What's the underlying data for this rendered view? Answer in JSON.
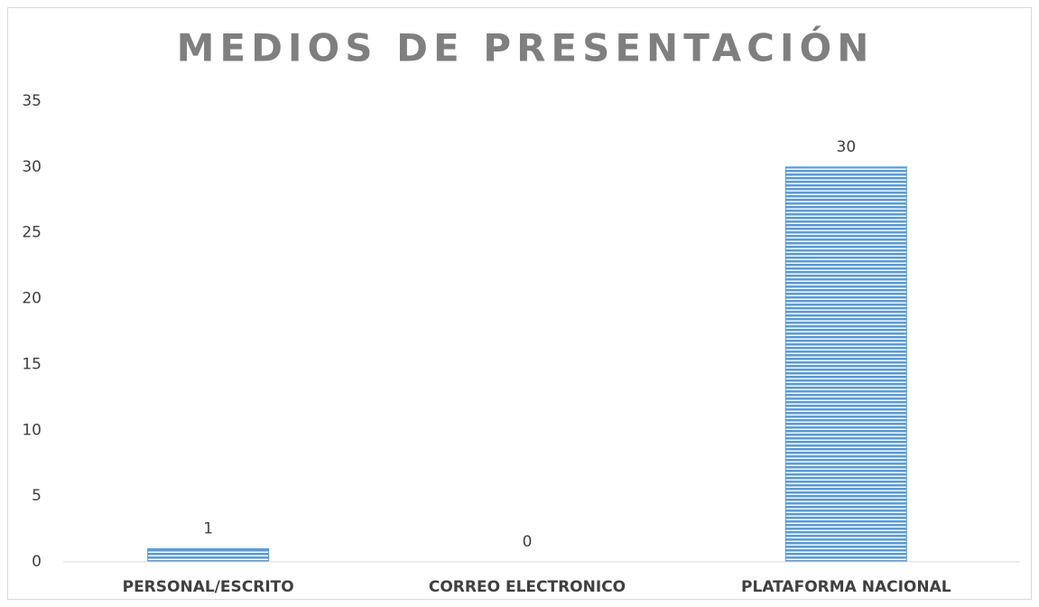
{
  "chart_data": {
    "type": "bar",
    "title": "MEDIOS DE PRESENTACIÓN",
    "categories": [
      "PERSONAL/ESCRITO",
      "CORREO ELECTRONICO",
      "PLATAFORMA NACIONAL"
    ],
    "values": [
      1,
      0,
      30
    ],
    "color": "#5b9bd5",
    "ylim": [
      0,
      35
    ],
    "yticks": [
      0,
      5,
      10,
      15,
      20,
      25,
      30,
      35
    ],
    "grid": false
  }
}
